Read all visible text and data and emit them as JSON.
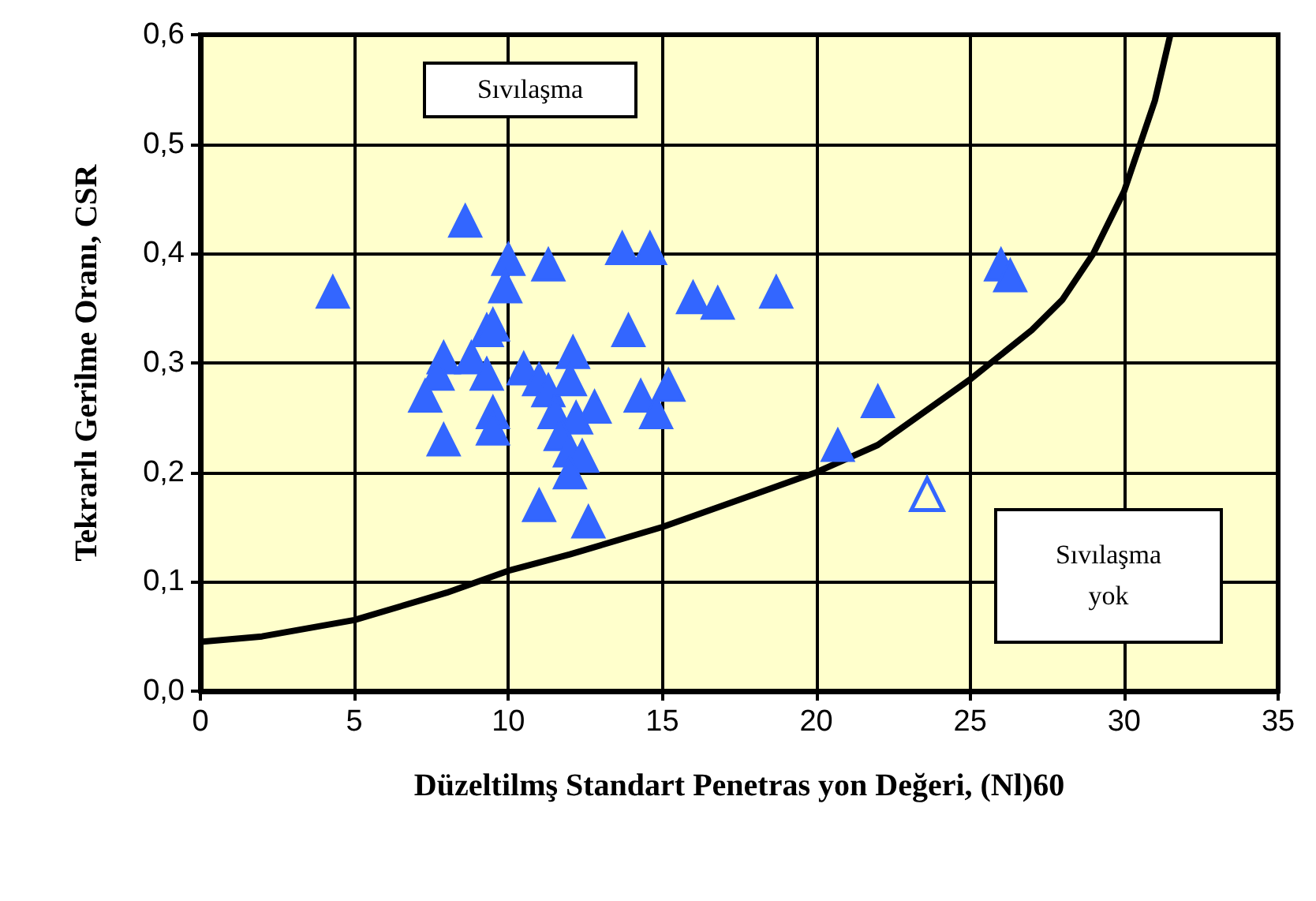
{
  "chart_data": {
    "type": "scatter",
    "xlabel": "Düzeltilmş Standart Penetras yon Değeri, (Nl)60",
    "ylabel": "Tekrarlı Gerilme Oranı, CSR",
    "xlim": [
      0,
      35
    ],
    "xticks": [
      0,
      5,
      10,
      15,
      20,
      25,
      30,
      35
    ],
    "ylim": [
      0,
      0.6
    ],
    "yticks": [
      {
        "value": 0,
        "label": "0,0"
      },
      {
        "value": 0.1,
        "label": "0,1"
      },
      {
        "value": 0.2,
        "label": "0,2"
      },
      {
        "value": 0.3,
        "label": "0,3"
      },
      {
        "value": 0.4,
        "label": "0,4"
      },
      {
        "value": 0.5,
        "label": "0,5"
      },
      {
        "value": 0.6,
        "label": "0,6"
      }
    ],
    "grid": true,
    "marker": "triangle",
    "annotations": [
      "Sıvılaşma",
      "Sıvılaşma\nyok"
    ],
    "series": [
      {
        "color": "#3366ff",
        "x": [
          4.3,
          8.6,
          10,
          11.3,
          13.7,
          14.6,
          9.9,
          16,
          16.8,
          18.7,
          26,
          26.3,
          13.9,
          9.3,
          9.5,
          12.1,
          7.9,
          8.8,
          7.7,
          9.3,
          10.5,
          11,
          11.3,
          12,
          15.2,
          7.3,
          14.3,
          11.5,
          12.8,
          12.2,
          9.5,
          9.5,
          14.8,
          7.9,
          11.7,
          12,
          12.4,
          12,
          11,
          12.6,
          20.7,
          22
        ],
        "values": [
          0.365,
          0.43,
          0.395,
          0.39,
          0.405,
          0.405,
          0.37,
          0.36,
          0.355,
          0.365,
          0.39,
          0.38,
          0.33,
          0.33,
          0.335,
          0.31,
          0.305,
          0.305,
          0.29,
          0.29,
          0.295,
          0.285,
          0.275,
          0.285,
          0.28,
          0.27,
          0.27,
          0.255,
          0.26,
          0.25,
          0.255,
          0.24,
          0.255,
          0.23,
          0.235,
          0.22,
          0.215,
          0.2,
          0.17,
          0.155,
          0.225,
          0.265
        ]
      },
      {
        "color": "#3366ff",
        "x": [
          23.6
        ],
        "values": [
          0.18
        ]
      },
      {
        "type": "line",
        "color": "#000000",
        "marker": "none",
        "x": [
          0,
          2,
          5,
          8,
          10,
          12,
          15,
          18,
          20,
          22,
          25,
          27,
          28,
          29,
          30,
          31,
          31.5
        ],
        "values": [
          0.045,
          0.05,
          0.065,
          0.09,
          0.11,
          0.125,
          0.15,
          0.18,
          0.2,
          0.225,
          0.285,
          0.33,
          0.358,
          0.4,
          0.457,
          0.54,
          0.6
        ]
      }
    ]
  }
}
